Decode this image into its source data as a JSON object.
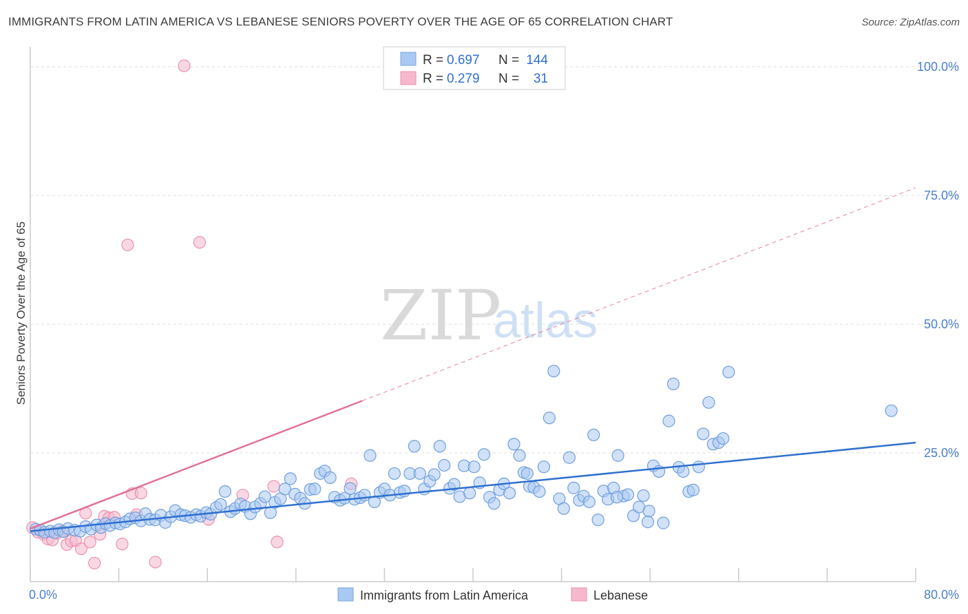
{
  "title": "IMMIGRANTS FROM LATIN AMERICA VS LEBANESE SENIORS POVERTY OVER THE AGE OF 65 CORRELATION CHART",
  "source": "Source: ZipAtlas.com",
  "watermark": {
    "zip": "ZIP",
    "atlas": "atlas"
  },
  "colors": {
    "blue": "#2f6fd0",
    "blue_fill": "#a9c8f2",
    "pink": "#e07098",
    "pink_fill": "#f6b8cc",
    "grid": "#dddddd",
    "tick": "#4a7fd0"
  },
  "chart_data": {
    "type": "scatter",
    "xlabel": "",
    "ylabel": "Seniors Poverty Over the Age of 65",
    "xlim": [
      0,
      80
    ],
    "ylim": [
      0,
      105
    ],
    "x_tick_labels": [
      {
        "value": 0,
        "label": "0.0%"
      },
      {
        "value": 80,
        "label": "80.0%"
      }
    ],
    "y_tick_labels": [
      {
        "value": 25,
        "label": "25.0%"
      },
      {
        "value": 50,
        "label": "50.0%"
      },
      {
        "value": 75,
        "label": "75.0%"
      },
      {
        "value": 100,
        "label": "100.0%"
      }
    ],
    "grid": "dashed horizontal",
    "legend": {
      "entries": [
        {
          "r_label": "R =",
          "r_value": "0.697",
          "n_label": "N =",
          "n_value": "144"
        },
        {
          "r_label": "R =",
          "r_value": "0.279",
          "n_label": "N =",
          "n_value": "31"
        }
      ]
    },
    "series": [
      {
        "name": "Immigrants from Latin America",
        "color": "#2f6fd0",
        "trend": {
          "x": [
            0,
            80
          ],
          "y": [
            9.8,
            27.0
          ],
          "style": "solid"
        },
        "points": [
          [
            0.5,
            10.2
          ],
          [
            0.9,
            10.0
          ],
          [
            1.3,
            9.6
          ],
          [
            1.8,
            9.8
          ],
          [
            2.2,
            9.5
          ],
          [
            2.6,
            10.1
          ],
          [
            3.0,
            9.7
          ],
          [
            3.4,
            10.3
          ],
          [
            4.0,
            10.0
          ],
          [
            4.5,
            9.8
          ],
          [
            5.0,
            10.7
          ],
          [
            5.5,
            10.2
          ],
          [
            6.0,
            11.0
          ],
          [
            6.4,
            10.5
          ],
          [
            6.8,
            11.3
          ],
          [
            7.2,
            10.9
          ],
          [
            7.7,
            11.4
          ],
          [
            8.1,
            11.2
          ],
          [
            8.6,
            11.6
          ],
          [
            9.0,
            12.2
          ],
          [
            9.5,
            12.4
          ],
          [
            10.0,
            11.8
          ],
          [
            10.4,
            13.2
          ],
          [
            10.8,
            12.1
          ],
          [
            11.3,
            12.0
          ],
          [
            11.8,
            12.9
          ],
          [
            12.2,
            11.5
          ],
          [
            12.7,
            12.6
          ],
          [
            13.1,
            13.8
          ],
          [
            13.6,
            13.0
          ],
          [
            14.0,
            12.8
          ],
          [
            14.5,
            12.5
          ],
          [
            15.0,
            13.0
          ],
          [
            15.4,
            12.7
          ],
          [
            15.9,
            13.4
          ],
          [
            16.3,
            13.1
          ],
          [
            16.8,
            14.4
          ],
          [
            17.2,
            15.0
          ],
          [
            17.6,
            17.5
          ],
          [
            18.1,
            13.6
          ],
          [
            18.5,
            14.2
          ],
          [
            19.0,
            15.1
          ],
          [
            19.4,
            14.6
          ],
          [
            19.9,
            13.2
          ],
          [
            20.3,
            14.5
          ],
          [
            20.8,
            15.2
          ],
          [
            21.2,
            16.5
          ],
          [
            21.7,
            13.4
          ],
          [
            22.1,
            15.4
          ],
          [
            22.6,
            16.1
          ],
          [
            23.0,
            18.0
          ],
          [
            23.5,
            20.0
          ],
          [
            23.9,
            17.0
          ],
          [
            24.4,
            16.2
          ],
          [
            24.8,
            15.2
          ],
          [
            25.3,
            17.9
          ],
          [
            25.7,
            18.0
          ],
          [
            26.2,
            21.0
          ],
          [
            26.6,
            21.5
          ],
          [
            27.1,
            20.2
          ],
          [
            27.5,
            16.4
          ],
          [
            28.0,
            15.8
          ],
          [
            28.4,
            16.2
          ],
          [
            28.9,
            18.1
          ],
          [
            29.3,
            16.0
          ],
          [
            29.8,
            16.3
          ],
          [
            30.2,
            16.8
          ],
          [
            30.7,
            24.5
          ],
          [
            31.1,
            15.5
          ],
          [
            31.6,
            17.3
          ],
          [
            32.0,
            18.0
          ],
          [
            32.5,
            16.8
          ],
          [
            32.9,
            21.0
          ],
          [
            33.4,
            17.3
          ],
          [
            33.8,
            17.6
          ],
          [
            34.3,
            21.0
          ],
          [
            34.7,
            26.3
          ],
          [
            35.2,
            21.0
          ],
          [
            35.6,
            18.0
          ],
          [
            36.1,
            19.5
          ],
          [
            36.5,
            20.8
          ],
          [
            37.0,
            26.3
          ],
          [
            37.4,
            22.6
          ],
          [
            37.9,
            18.1
          ],
          [
            38.3,
            18.9
          ],
          [
            38.8,
            16.5
          ],
          [
            39.2,
            22.5
          ],
          [
            39.7,
            17.2
          ],
          [
            40.1,
            22.3
          ],
          [
            40.6,
            19.2
          ],
          [
            41.0,
            24.7
          ],
          [
            41.5,
            16.4
          ],
          [
            41.9,
            15.2
          ],
          [
            42.4,
            17.8
          ],
          [
            42.8,
            19.0
          ],
          [
            43.3,
            17.2
          ],
          [
            43.7,
            26.7
          ],
          [
            44.2,
            24.5
          ],
          [
            44.6,
            21.2
          ],
          [
            45.1,
            18.5
          ],
          [
            45.5,
            18.3
          ],
          [
            46.0,
            17.5
          ],
          [
            46.4,
            22.3
          ],
          [
            46.9,
            31.8
          ],
          [
            47.3,
            40.9
          ],
          [
            47.8,
            16.1
          ],
          [
            48.2,
            14.2
          ],
          [
            48.7,
            24.1
          ],
          [
            49.1,
            18.2
          ],
          [
            49.6,
            15.8
          ],
          [
            50.0,
            16.6
          ],
          [
            50.5,
            15.5
          ],
          [
            50.9,
            28.5
          ],
          [
            51.3,
            12.0
          ],
          [
            51.8,
            17.6
          ],
          [
            52.2,
            16.0
          ],
          [
            52.7,
            18.2
          ],
          [
            53.1,
            24.5
          ],
          [
            53.6,
            16.6
          ],
          [
            54.0,
            16.9
          ],
          [
            54.5,
            12.8
          ],
          [
            55.0,
            14.5
          ],
          [
            55.4,
            16.7
          ],
          [
            55.9,
            13.7
          ],
          [
            56.3,
            22.5
          ],
          [
            56.8,
            21.4
          ],
          [
            57.2,
            11.4
          ],
          [
            57.7,
            31.2
          ],
          [
            58.1,
            38.4
          ],
          [
            58.6,
            22.2
          ],
          [
            59.0,
            21.4
          ],
          [
            59.5,
            17.5
          ],
          [
            59.9,
            17.8
          ],
          [
            60.4,
            22.3
          ],
          [
            60.8,
            28.7
          ],
          [
            61.3,
            34.8
          ],
          [
            61.7,
            26.7
          ],
          [
            62.2,
            27.0
          ],
          [
            62.6,
            27.8
          ],
          [
            63.1,
            40.7
          ],
          [
            77.8,
            33.2
          ],
          [
            53.0,
            16.4
          ],
          [
            44.9,
            21.0
          ],
          [
            55.8,
            11.6
          ]
        ]
      },
      {
        "name": "Lebanese",
        "color": "#e07098",
        "trend": {
          "x": [
            0,
            80
          ],
          "y": [
            10.3,
            76.5
          ],
          "solid_until_x": 30
        },
        "points": [
          [
            0.2,
            10.5
          ],
          [
            0.7,
            9.6
          ],
          [
            1.2,
            9.2
          ],
          [
            1.6,
            8.3
          ],
          [
            2.0,
            8.1
          ],
          [
            2.4,
            9.4
          ],
          [
            2.9,
            9.8
          ],
          [
            3.3,
            7.2
          ],
          [
            3.7,
            7.9
          ],
          [
            4.1,
            8.0
          ],
          [
            4.6,
            6.4
          ],
          [
            5.0,
            13.3
          ],
          [
            5.4,
            7.7
          ],
          [
            5.8,
            3.6
          ],
          [
            6.3,
            9.2
          ],
          [
            6.7,
            12.7
          ],
          [
            7.1,
            12.4
          ],
          [
            7.6,
            12.5
          ],
          [
            8.3,
            7.3
          ],
          [
            8.8,
            65.4
          ],
          [
            9.2,
            17.1
          ],
          [
            9.6,
            13.0
          ],
          [
            10.0,
            17.2
          ],
          [
            11.3,
            3.8
          ],
          [
            13.9,
            100.2
          ],
          [
            15.3,
            65.9
          ],
          [
            16.1,
            12.1
          ],
          [
            19.2,
            16.8
          ],
          [
            22.0,
            18.5
          ],
          [
            22.3,
            7.7
          ],
          [
            29.0,
            19.0
          ]
        ]
      }
    ],
    "bottom_legend": [
      "Immigrants from Latin America",
      "Lebanese"
    ]
  }
}
